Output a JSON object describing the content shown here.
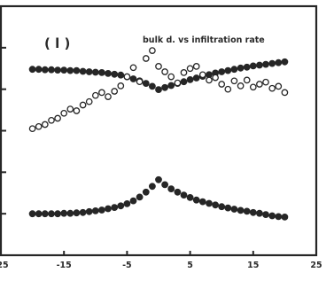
{
  "chart_data": {
    "type": "scatter",
    "panel_label": "( l )",
    "title": "bulk d. vs infiltration rate",
    "xlabel": "",
    "ylabel": "",
    "xlim": [
      -25,
      25
    ],
    "x_ticks": [
      -25,
      -15,
      -5,
      5,
      15,
      25
    ],
    "x_tick_labels": [
      "-25",
      "-15",
      "-5",
      "5",
      "15",
      "25"
    ],
    "ylim": [
      0,
      6
    ],
    "y_ticks": [
      1,
      2,
      3,
      4,
      5
    ],
    "grid": false,
    "series": [
      {
        "marker": "filled",
        "color": "#262626",
        "points": [
          [
            -20,
            4.48
          ],
          [
            -19,
            4.48
          ],
          [
            -18,
            4.47
          ],
          [
            -17,
            4.47
          ],
          [
            -16,
            4.46
          ],
          [
            -15,
            4.46
          ],
          [
            -14,
            4.45
          ],
          [
            -13,
            4.45
          ],
          [
            -12,
            4.43
          ],
          [
            -11,
            4.42
          ],
          [
            -10,
            4.41
          ],
          [
            -9,
            4.4
          ],
          [
            -8,
            4.38
          ],
          [
            -7,
            4.36
          ],
          [
            -6,
            4.34
          ],
          [
            -5,
            4.3
          ],
          [
            -4,
            4.25
          ],
          [
            -3,
            4.2
          ],
          [
            -2,
            4.14
          ],
          [
            -1,
            4.07
          ],
          [
            0,
            3.99
          ],
          [
            1,
            4.04
          ],
          [
            2,
            4.09
          ],
          [
            3,
            4.14
          ],
          [
            4,
            4.18
          ],
          [
            5,
            4.23
          ],
          [
            6,
            4.27
          ],
          [
            7,
            4.31
          ],
          [
            8,
            4.35
          ],
          [
            9,
            4.39
          ],
          [
            10,
            4.42
          ],
          [
            11,
            4.45
          ],
          [
            12,
            4.48
          ],
          [
            13,
            4.51
          ],
          [
            14,
            4.53
          ],
          [
            15,
            4.56
          ],
          [
            16,
            4.58
          ],
          [
            17,
            4.6
          ],
          [
            18,
            4.62
          ],
          [
            19,
            4.64
          ],
          [
            20,
            4.66
          ]
        ]
      },
      {
        "marker": "open",
        "color": "#262626",
        "points": [
          [
            -20,
            3.05
          ],
          [
            -19,
            3.1
          ],
          [
            -18,
            3.15
          ],
          [
            -17,
            3.25
          ],
          [
            -16,
            3.3
          ],
          [
            -15,
            3.42
          ],
          [
            -14,
            3.52
          ],
          [
            -13,
            3.48
          ],
          [
            -12,
            3.62
          ],
          [
            -11,
            3.7
          ],
          [
            -10,
            3.85
          ],
          [
            -9,
            3.92
          ],
          [
            -8,
            3.82
          ],
          [
            -7,
            3.95
          ],
          [
            -6,
            4.08
          ],
          [
            -5,
            4.3
          ],
          [
            -4,
            4.52
          ],
          [
            -3,
            4.18
          ],
          [
            -2,
            4.74
          ],
          [
            -1,
            4.93
          ],
          [
            0,
            4.55
          ],
          [
            1,
            4.42
          ],
          [
            2,
            4.3
          ],
          [
            3,
            4.15
          ],
          [
            4,
            4.4
          ],
          [
            5,
            4.5
          ],
          [
            6,
            4.55
          ],
          [
            7,
            4.35
          ],
          [
            8,
            4.22
          ],
          [
            9,
            4.28
          ],
          [
            10,
            4.12
          ],
          [
            11,
            4.0
          ],
          [
            12,
            4.2
          ],
          [
            13,
            4.08
          ],
          [
            14,
            4.22
          ],
          [
            15,
            4.05
          ],
          [
            16,
            4.12
          ],
          [
            17,
            4.17
          ],
          [
            18,
            4.02
          ],
          [
            19,
            4.07
          ],
          [
            20,
            3.92
          ]
        ]
      },
      {
        "marker": "filled",
        "color": "#262626",
        "points": [
          [
            -20,
            1.0
          ],
          [
            -19,
            1.0
          ],
          [
            -18,
            1.0
          ],
          [
            -17,
            1.0
          ],
          [
            -16,
            1.0
          ],
          [
            -15,
            1.01
          ],
          [
            -14,
            1.01
          ],
          [
            -13,
            1.02
          ],
          [
            -12,
            1.03
          ],
          [
            -11,
            1.05
          ],
          [
            -10,
            1.07
          ],
          [
            -9,
            1.09
          ],
          [
            -8,
            1.12
          ],
          [
            -7,
            1.15
          ],
          [
            -6,
            1.19
          ],
          [
            -5,
            1.24
          ],
          [
            -4,
            1.31
          ],
          [
            -3,
            1.4
          ],
          [
            -2,
            1.52
          ],
          [
            -1,
            1.66
          ],
          [
            0,
            1.82
          ],
          [
            1,
            1.7
          ],
          [
            2,
            1.6
          ],
          [
            3,
            1.52
          ],
          [
            4,
            1.45
          ],
          [
            5,
            1.39
          ],
          [
            6,
            1.33
          ],
          [
            7,
            1.29
          ],
          [
            8,
            1.25
          ],
          [
            9,
            1.21
          ],
          [
            10,
            1.17
          ],
          [
            11,
            1.14
          ],
          [
            12,
            1.11
          ],
          [
            13,
            1.08
          ],
          [
            14,
            1.06
          ],
          [
            15,
            1.03
          ],
          [
            16,
            1.01
          ],
          [
            17,
            0.98
          ],
          [
            18,
            0.95
          ],
          [
            19,
            0.93
          ],
          [
            20,
            0.92
          ]
        ]
      }
    ]
  }
}
